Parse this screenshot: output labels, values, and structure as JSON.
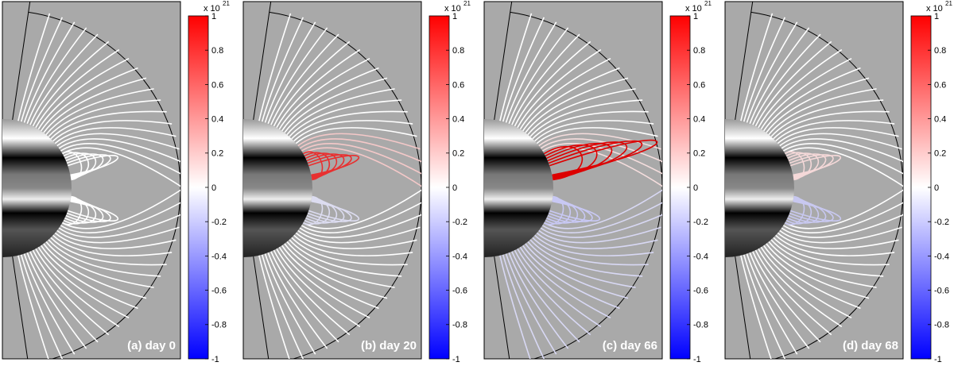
{
  "chart_data": [
    {
      "type": "field-lines",
      "title": "(a) day 0",
      "colorbar": {
        "lim": [
          -1,
          1
        ],
        "ticks": [
          -1,
          -0.8,
          -0.6,
          -0.4,
          -0.2,
          0,
          0.2,
          0.4,
          0.6,
          0.8,
          1
        ],
        "multiplier": "x 10",
        "exponent": "21"
      }
    },
    {
      "type": "field-lines",
      "title": "(b) day 20",
      "colorbar": {
        "lim": [
          -1,
          1
        ],
        "ticks": [
          -1,
          -0.8,
          -0.6,
          -0.4,
          -0.2,
          0,
          0.2,
          0.4,
          0.6,
          0.8,
          1
        ],
        "multiplier": "x 10",
        "exponent": "21"
      }
    },
    {
      "type": "field-lines",
      "title": "(c) day 66",
      "colorbar": {
        "lim": [
          -1,
          1
        ],
        "ticks": [
          -1,
          -0.8,
          -0.6,
          -0.4,
          -0.2,
          0,
          0.2,
          0.4,
          0.6,
          0.8,
          1
        ],
        "multiplier": "x 10",
        "exponent": "21"
      }
    },
    {
      "type": "field-lines",
      "title": "(d) day 68",
      "colorbar": {
        "lim": [
          -1,
          1
        ],
        "ticks": [
          -1,
          -0.8,
          -0.6,
          -0.4,
          -0.2,
          0,
          0.2,
          0.4,
          0.6,
          0.8,
          1
        ],
        "multiplier": "x 10",
        "exponent": "21"
      }
    }
  ]
}
